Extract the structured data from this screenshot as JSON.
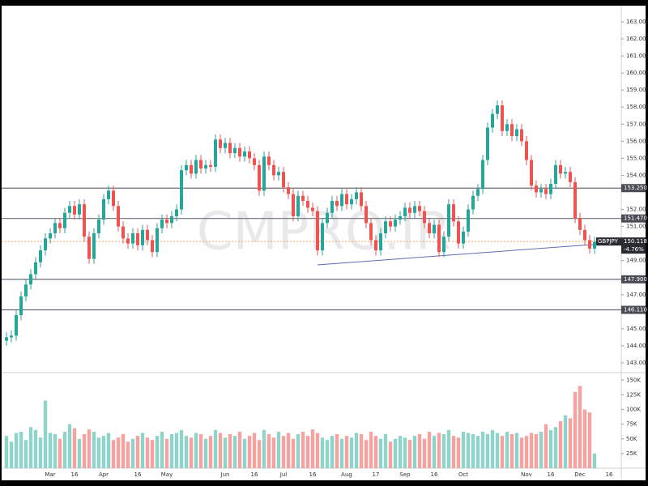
{
  "chart_data": {
    "type": "candlestick",
    "symbol": "GBPJPY",
    "change": "-4.76%",
    "watermark": "CMPRO.IR",
    "up_color": "#26a69a",
    "down_color": "#ef5350",
    "volume_up_color": "#8fd3cb",
    "volume_down_color": "#f4a3a1",
    "level_color": "#6b6e78",
    "ylim": [
      142.43,
      163.95
    ],
    "yticks": [
      {
        "value": 143,
        "label": "143.000"
      },
      {
        "value": 144,
        "label": "144.000"
      },
      {
        "value": 145,
        "label": "145.000"
      },
      {
        "value": 147,
        "label": "147.000"
      },
      {
        "value": 149,
        "label": "149.000"
      },
      {
        "value": 151,
        "label": "151.000"
      },
      {
        "value": 152,
        "label": "152.000"
      },
      {
        "value": 154,
        "label": "154.000"
      },
      {
        "value": 155,
        "label": "155.000"
      },
      {
        "value": 156,
        "label": "156.000"
      },
      {
        "value": 157,
        "label": "157.000"
      },
      {
        "value": 158,
        "label": "158.000"
      },
      {
        "value": 159,
        "label": "159.000"
      },
      {
        "value": 160,
        "label": "160.000"
      },
      {
        "value": 161,
        "label": "161.000"
      },
      {
        "value": 162,
        "label": "162.000"
      },
      {
        "value": 163,
        "label": "163.000"
      }
    ],
    "levels": [
      {
        "value": 153.25,
        "label": "153.250"
      },
      {
        "value": 151.47,
        "label": "151.470"
      },
      {
        "value": 147.9,
        "label": "147.900"
      },
      {
        "value": 146.11,
        "label": "146.110"
      }
    ],
    "last_price": {
      "value": 150.118,
      "label": "150.118",
      "color": "#f7a35c"
    },
    "trendline": {
      "x": [
        64,
        121
      ],
      "y": [
        148.75,
        149.95
      ],
      "color": "#5b6bb5"
    },
    "categories": [
      null,
      null,
      null,
      null,
      null,
      null,
      null,
      null,
      null,
      "Mar",
      null,
      null,
      null,
      null,
      "16",
      null,
      null,
      null,
      null,
      null,
      "Apr",
      null,
      null,
      null,
      null,
      null,
      null,
      "16",
      null,
      null,
      null,
      null,
      null,
      "May",
      null,
      null,
      null,
      null,
      null,
      null,
      null,
      null,
      null,
      null,
      null,
      "Jun",
      null,
      null,
      null,
      null,
      null,
      "16",
      null,
      null,
      null,
      null,
      null,
      "Jul",
      null,
      null,
      null,
      null,
      null,
      "16",
      null,
      null,
      null,
      null,
      null,
      null,
      "Aug",
      null,
      null,
      null,
      null,
      null,
      "17",
      null,
      null,
      null,
      null,
      null,
      "Sep",
      null,
      null,
      null,
      null,
      null,
      "16",
      null,
      null,
      null,
      null,
      null,
      "Oct",
      null,
      null,
      null,
      null,
      null,
      null,
      null,
      null,
      null,
      null,
      null,
      null,
      "Nov",
      null,
      null,
      null,
      null,
      "16",
      null,
      null,
      null,
      null,
      null,
      "Dec",
      null,
      null,
      null,
      null,
      null,
      "16"
    ],
    "series": [
      {
        "name": "GBPJPY",
        "values": [
          [
            144.3,
            144.8,
            144.0,
            144.5
          ],
          [
            144.5,
            144.9,
            144.2,
            144.6
          ],
          [
            144.6,
            146.1,
            144.3,
            145.8
          ],
          [
            145.8,
            147.2,
            145.5,
            146.9
          ],
          [
            146.9,
            147.9,
            146.6,
            147.6
          ],
          [
            147.6,
            148.5,
            147.3,
            148.2
          ],
          [
            148.2,
            149.2,
            147.9,
            148.9
          ],
          [
            148.9,
            149.9,
            148.6,
            149.6
          ],
          [
            149.6,
            150.6,
            149.3,
            150.3
          ],
          [
            150.3,
            150.9,
            150.0,
            150.6
          ],
          [
            150.6,
            151.5,
            150.3,
            151.2
          ],
          [
            151.2,
            151.5,
            150.6,
            150.9
          ],
          [
            150.9,
            152.1,
            150.6,
            151.8
          ],
          [
            151.8,
            152.5,
            151.5,
            152.2
          ],
          [
            152.2,
            152.5,
            151.4,
            151.7
          ],
          [
            151.7,
            152.6,
            151.4,
            152.3
          ],
          [
            152.3,
            152.6,
            150.1,
            150.4
          ],
          [
            150.4,
            150.7,
            148.8,
            149.1
          ],
          [
            149.1,
            150.9,
            148.8,
            150.6
          ],
          [
            150.6,
            151.7,
            150.3,
            151.4
          ],
          [
            151.4,
            152.9,
            151.1,
            152.6
          ],
          [
            152.6,
            153.4,
            152.3,
            153.1
          ],
          [
            153.1,
            153.4,
            151.9,
            152.2
          ],
          [
            152.2,
            152.5,
            150.7,
            151.0
          ],
          [
            151.0,
            151.3,
            150.0,
            150.3
          ],
          [
            150.3,
            150.6,
            149.7,
            150.0
          ],
          [
            150.0,
            150.9,
            149.7,
            150.6
          ],
          [
            150.6,
            150.9,
            149.6,
            149.9
          ],
          [
            149.9,
            151.1,
            149.6,
            150.8
          ],
          [
            150.8,
            151.1,
            149.9,
            150.2
          ],
          [
            150.2,
            150.5,
            149.2,
            149.5
          ],
          [
            149.5,
            151.2,
            149.2,
            150.9
          ],
          [
            150.9,
            151.7,
            150.6,
            151.4
          ],
          [
            151.4,
            151.7,
            150.9,
            151.2
          ],
          [
            151.2,
            151.9,
            150.9,
            151.6
          ],
          [
            151.6,
            152.3,
            151.3,
            152.0
          ],
          [
            152.0,
            154.6,
            151.7,
            154.3
          ],
          [
            154.3,
            154.9,
            154.0,
            154.6
          ],
          [
            154.6,
            154.9,
            153.8,
            154.1
          ],
          [
            154.1,
            155.2,
            153.8,
            154.9
          ],
          [
            154.9,
            155.2,
            154.1,
            154.4
          ],
          [
            154.4,
            154.9,
            154.1,
            154.6
          ],
          [
            154.6,
            154.9,
            154.2,
            154.5
          ],
          [
            154.5,
            156.4,
            154.2,
            156.1
          ],
          [
            156.1,
            156.4,
            155.3,
            155.6
          ],
          [
            155.6,
            156.2,
            155.3,
            155.9
          ],
          [
            155.9,
            156.2,
            155.0,
            155.3
          ],
          [
            155.3,
            155.9,
            155.0,
            155.6
          ],
          [
            155.6,
            155.9,
            154.8,
            155.1
          ],
          [
            155.1,
            155.7,
            154.8,
            155.4
          ],
          [
            155.4,
            155.7,
            154.7,
            155.0
          ],
          [
            155.0,
            155.3,
            154.3,
            154.6
          ],
          [
            154.6,
            154.9,
            152.8,
            153.1
          ],
          [
            153.1,
            155.4,
            152.8,
            155.1
          ],
          [
            155.1,
            155.4,
            154.3,
            154.6
          ],
          [
            154.6,
            154.9,
            153.7,
            154.0
          ],
          [
            154.0,
            154.5,
            153.7,
            154.2
          ],
          [
            154.2,
            154.5,
            153.0,
            153.3
          ],
          [
            153.3,
            153.6,
            152.6,
            152.9
          ],
          [
            152.9,
            153.2,
            151.3,
            151.6
          ],
          [
            151.6,
            153.1,
            151.3,
            152.8
          ],
          [
            152.8,
            153.1,
            152.2,
            152.5
          ],
          [
            152.5,
            152.8,
            151.8,
            152.1
          ],
          [
            152.1,
            152.4,
            151.6,
            151.9
          ],
          [
            151.9,
            152.2,
            149.3,
            149.6
          ],
          [
            149.6,
            151.5,
            149.3,
            151.2
          ],
          [
            151.2,
            152.1,
            150.9,
            151.8
          ],
          [
            151.8,
            152.8,
            151.5,
            152.5
          ],
          [
            152.5,
            152.8,
            151.9,
            152.2
          ],
          [
            152.2,
            153.2,
            151.9,
            152.9
          ],
          [
            152.9,
            153.2,
            152.0,
            152.3
          ],
          [
            152.3,
            152.9,
            152.0,
            152.6
          ],
          [
            152.6,
            153.3,
            152.3,
            153.0
          ],
          [
            153.0,
            153.3,
            151.9,
            152.2
          ],
          [
            152.2,
            152.5,
            150.9,
            151.2
          ],
          [
            151.2,
            151.5,
            149.9,
            150.2
          ],
          [
            150.2,
            150.5,
            149.3,
            149.6
          ],
          [
            149.6,
            150.9,
            149.3,
            150.6
          ],
          [
            150.6,
            151.6,
            150.3,
            151.3
          ],
          [
            151.3,
            151.6,
            150.7,
            151.0
          ],
          [
            151.0,
            151.7,
            150.7,
            151.4
          ],
          [
            151.4,
            151.9,
            151.1,
            151.6
          ],
          [
            151.6,
            152.4,
            151.3,
            152.1
          ],
          [
            152.1,
            152.4,
            151.5,
            151.8
          ],
          [
            151.8,
            152.5,
            151.5,
            152.2
          ],
          [
            152.2,
            152.5,
            151.6,
            151.9
          ],
          [
            151.9,
            152.2,
            150.9,
            151.2
          ],
          [
            151.2,
            151.5,
            150.3,
            150.6
          ],
          [
            150.6,
            151.4,
            150.3,
            151.1
          ],
          [
            151.1,
            151.4,
            149.2,
            149.5
          ],
          [
            149.5,
            150.7,
            149.2,
            150.4
          ],
          [
            150.4,
            152.6,
            150.1,
            152.3
          ],
          [
            152.3,
            152.6,
            151.0,
            151.3
          ],
          [
            151.3,
            151.6,
            149.7,
            150.0
          ],
          [
            150.0,
            151.0,
            149.7,
            150.7
          ],
          [
            150.7,
            152.3,
            150.4,
            152.0
          ],
          [
            152.0,
            153.1,
            151.7,
            152.8
          ],
          [
            152.8,
            153.5,
            152.5,
            153.2
          ],
          [
            153.2,
            155.2,
            152.9,
            154.9
          ],
          [
            154.9,
            157.1,
            154.6,
            156.8
          ],
          [
            156.8,
            157.9,
            156.5,
            157.6
          ],
          [
            157.6,
            158.4,
            157.3,
            158.1
          ],
          [
            158.1,
            158.4,
            156.3,
            156.6
          ],
          [
            156.6,
            157.3,
            156.3,
            157.0
          ],
          [
            157.0,
            157.3,
            156.0,
            156.3
          ],
          [
            156.3,
            157.0,
            156.0,
            156.7
          ],
          [
            156.7,
            157.0,
            155.7,
            156.0
          ],
          [
            156.0,
            156.3,
            154.6,
            154.9
          ],
          [
            154.9,
            155.2,
            153.1,
            153.4
          ],
          [
            153.4,
            153.7,
            152.7,
            153.0
          ],
          [
            153.0,
            153.5,
            152.7,
            153.2
          ],
          [
            153.2,
            153.5,
            152.6,
            152.9
          ],
          [
            152.9,
            153.8,
            152.6,
            153.5
          ],
          [
            153.5,
            154.9,
            153.2,
            154.6
          ],
          [
            154.6,
            154.9,
            153.8,
            154.1
          ],
          [
            154.1,
            154.5,
            153.8,
            154.2
          ],
          [
            154.2,
            154.5,
            153.3,
            153.6
          ],
          [
            153.6,
            153.9,
            151.2,
            151.5
          ],
          [
            151.5,
            151.8,
            150.5,
            150.8
          ],
          [
            150.8,
            151.1,
            149.9,
            150.2
          ],
          [
            150.2,
            150.5,
            149.4,
            149.7
          ],
          [
            149.7,
            150.4,
            149.4,
            150.1
          ],
          null,
          null,
          null
        ]
      }
    ],
    "volume": {
      "ylim": [
        0,
        160000
      ],
      "yticks": [
        {
          "value": 25000,
          "label": "25K"
        },
        {
          "value": 50000,
          "label": "50K"
        },
        {
          "value": 75000,
          "label": "75K"
        },
        {
          "value": 100000,
          "label": "100K"
        },
        {
          "value": 125000,
          "label": "125K"
        },
        {
          "value": 150000,
          "label": "150K"
        }
      ],
      "values": [
        55000,
        45000,
        60000,
        62000,
        48000,
        70000,
        65000,
        52000,
        115000,
        60000,
        58000,
        50000,
        62000,
        75000,
        68000,
        50000,
        58000,
        66000,
        62000,
        52000,
        55000,
        60000,
        48000,
        52000,
        58000,
        45000,
        50000,
        55000,
        60000,
        52000,
        48000,
        55000,
        62000,
        50000,
        58000,
        60000,
        65000,
        55000,
        52000,
        60000,
        58000,
        50000,
        55000,
        65000,
        60000,
        52000,
        58000,
        55000,
        62000,
        50000,
        55000,
        60000,
        48000,
        65000,
        58000,
        52000,
        62000,
        55000,
        60000,
        50000,
        58000,
        62000,
        55000,
        66000,
        60000,
        52000,
        48000,
        55000,
        58000,
        50000,
        55000,
        52000,
        60000,
        58000,
        48000,
        62000,
        55000,
        50000,
        58000,
        45000,
        50000,
        55000,
        52000,
        48000,
        55000,
        58000,
        50000,
        62000,
        55000,
        60000,
        58000,
        65000,
        55000,
        52000,
        62000,
        60000,
        58000,
        55000,
        62000,
        58000,
        65000,
        60000,
        55000,
        62000,
        58000,
        60000,
        52000,
        55000,
        60000,
        58000,
        62000,
        75000,
        65000,
        70000,
        80000,
        90000,
        85000,
        130000,
        140000,
        100000,
        95000,
        25000,
        null,
        null,
        null
      ]
    }
  }
}
